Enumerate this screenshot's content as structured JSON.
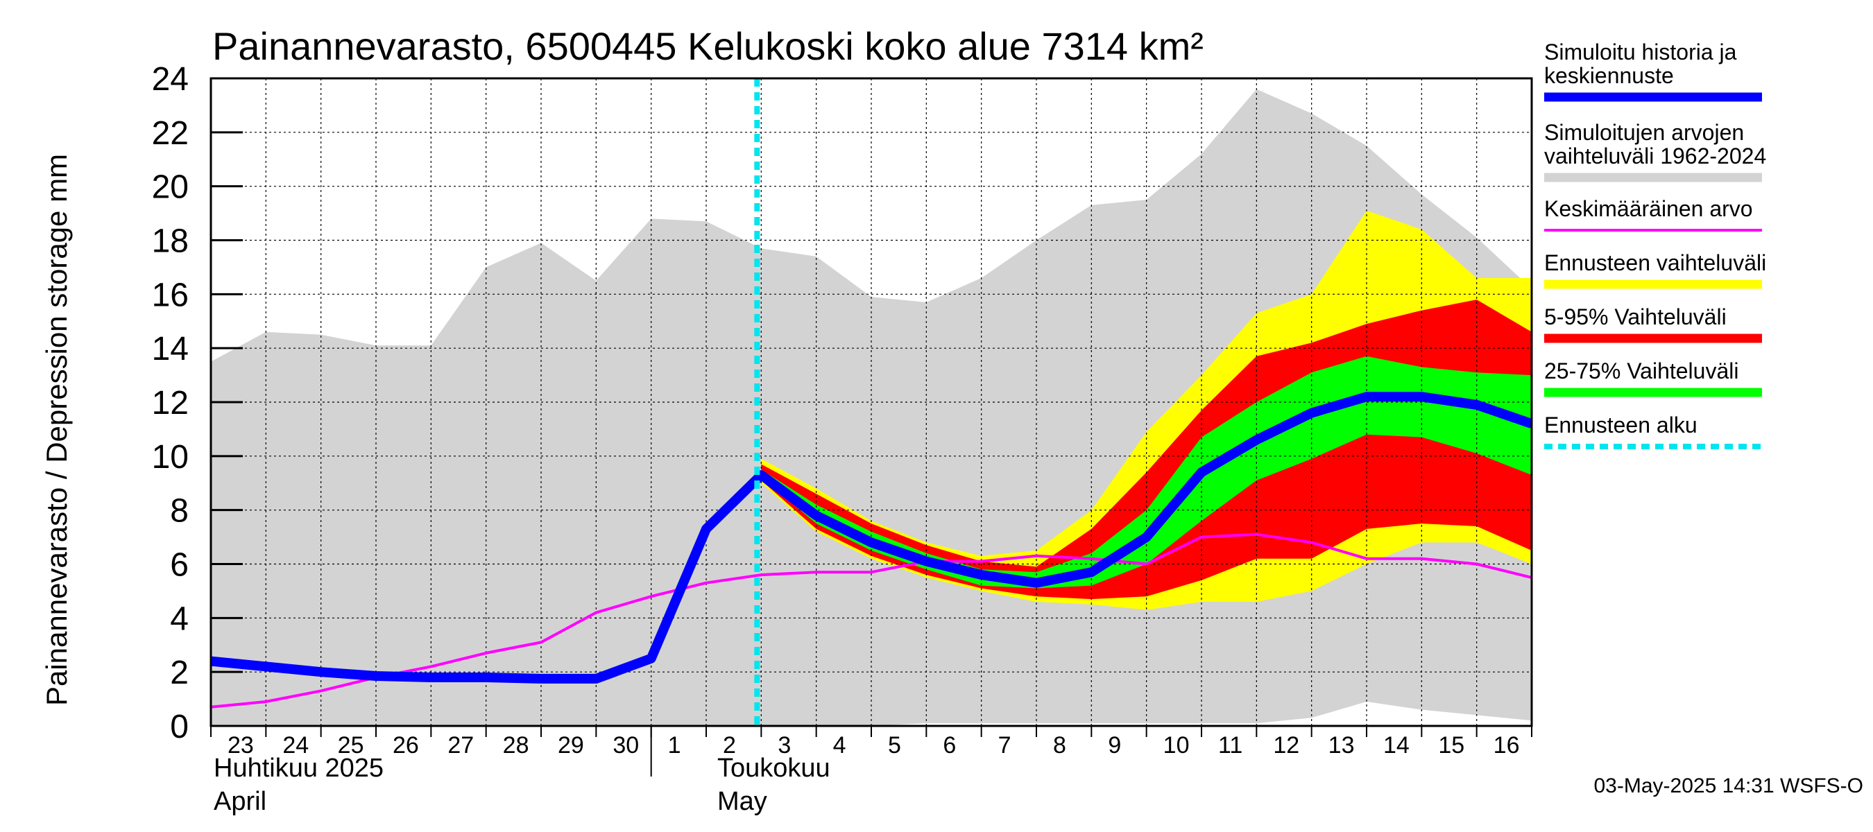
{
  "chart_data": {
    "type": "area",
    "title": "Painannevarasto, 6500445 Kelukoski koko alue 7314 km²",
    "ylabel": "Painannevarasto / Depression storage    mm",
    "ylim": [
      0,
      24
    ],
    "yticks": [
      0,
      2,
      4,
      6,
      8,
      10,
      12,
      14,
      16,
      18,
      20,
      22,
      24
    ],
    "grid": true,
    "legend_position": "right",
    "x_start_date": "2025-04-23",
    "x_end_date": "2025-05-17",
    "forecast_start_date": "2025-05-03",
    "x_tick_labels": [
      "23",
      "24",
      "25",
      "26",
      "27",
      "28",
      "29",
      "30",
      "1",
      "2",
      "3",
      "4",
      "5",
      "6",
      "7",
      "8",
      "9",
      "10",
      "11",
      "12",
      "13",
      "14",
      "15",
      "16"
    ],
    "month_labels": [
      {
        "fi": "Huhtikuu  2025",
        "en": "April",
        "date": "2025-04-23"
      },
      {
        "fi": "Toukokuu",
        "en": "May",
        "date": "2025-05-02"
      }
    ],
    "colors": {
      "history": "#0000ff",
      "hist_range": "#d3d3d3",
      "mean": "#ff00ff",
      "forecast_range": "#ffff00",
      "p5_95": "#ff0000",
      "p25_75": "#00ff00",
      "forecast_start": "#00e5ee"
    },
    "series": [
      {
        "name": "Simuloitujen arvojen vaihteluväli 1962-2024",
        "kind": "band",
        "x": [
          "2025-04-23",
          "2025-04-24",
          "2025-04-25",
          "2025-04-26",
          "2025-04-27",
          "2025-04-28",
          "2025-04-29",
          "2025-04-30",
          "2025-05-01",
          "2025-05-02",
          "2025-05-03",
          "2025-05-04",
          "2025-05-05",
          "2025-05-06",
          "2025-05-07",
          "2025-05-08",
          "2025-05-09",
          "2025-05-10",
          "2025-05-11",
          "2025-05-12",
          "2025-05-13",
          "2025-05-14",
          "2025-05-15",
          "2025-05-16",
          "2025-05-17"
        ],
        "low": [
          0,
          0,
          0,
          0,
          0,
          0,
          0,
          0,
          0,
          0,
          0,
          0,
          0,
          0.1,
          0.1,
          0.1,
          0.1,
          0.1,
          0.1,
          0.1,
          0.3,
          0.9,
          0.6,
          0.4,
          0.2
        ],
        "high": [
          13.5,
          14.6,
          14.5,
          14.1,
          14.1,
          17.0,
          17.9,
          16.5,
          18.8,
          18.7,
          17.7,
          17.4,
          15.9,
          15.7,
          16.6,
          18.0,
          19.3,
          19.5,
          21.2,
          23.6,
          22.7,
          21.5,
          19.7,
          18.1,
          16.2
        ]
      },
      {
        "name": "Ennusteen vaihteluväli",
        "kind": "band",
        "x": [
          "2025-05-03",
          "2025-05-04",
          "2025-05-05",
          "2025-05-06",
          "2025-05-07",
          "2025-05-08",
          "2025-05-09",
          "2025-05-10",
          "2025-05-11",
          "2025-05-12",
          "2025-05-13",
          "2025-05-14",
          "2025-05-15",
          "2025-05-16",
          "2025-05-17"
        ],
        "low": [
          9.0,
          7.2,
          6.2,
          5.5,
          5.0,
          4.6,
          4.5,
          4.3,
          4.6,
          4.6,
          5.0,
          6.0,
          6.8,
          6.8,
          6.0
        ],
        "high": [
          9.9,
          8.8,
          7.6,
          6.8,
          6.3,
          6.5,
          8.0,
          10.9,
          13.0,
          15.3,
          16.0,
          19.1,
          18.4,
          16.6,
          16.6
        ]
      },
      {
        "name": "5-95% Vaihteluväli",
        "kind": "band",
        "x": [
          "2025-05-03",
          "2025-05-04",
          "2025-05-05",
          "2025-05-06",
          "2025-05-07",
          "2025-05-08",
          "2025-05-09",
          "2025-05-10",
          "2025-05-11",
          "2025-05-12",
          "2025-05-13",
          "2025-05-14",
          "2025-05-15",
          "2025-05-16",
          "2025-05-17"
        ],
        "low": [
          9.1,
          7.3,
          6.3,
          5.6,
          5.1,
          4.8,
          4.7,
          4.8,
          5.4,
          6.2,
          6.2,
          7.3,
          7.5,
          7.4,
          6.5
        ],
        "high": [
          9.7,
          8.6,
          7.5,
          6.7,
          6.1,
          5.9,
          7.3,
          9.4,
          11.7,
          13.7,
          14.2,
          14.9,
          15.4,
          15.8,
          14.6
        ]
      },
      {
        "name": "25-75% Vaihteluväli",
        "kind": "band",
        "x": [
          "2025-05-03",
          "2025-05-04",
          "2025-05-05",
          "2025-05-06",
          "2025-05-07",
          "2025-05-08",
          "2025-05-09",
          "2025-05-10",
          "2025-05-11",
          "2025-05-12",
          "2025-05-13",
          "2025-05-14",
          "2025-05-15",
          "2025-05-16",
          "2025-05-17"
        ],
        "low": [
          9.2,
          7.5,
          6.5,
          5.8,
          5.2,
          5.1,
          5.2,
          6.0,
          7.6,
          9.1,
          9.9,
          10.8,
          10.7,
          10.1,
          9.3
        ],
        "high": [
          9.5,
          8.2,
          7.2,
          6.4,
          5.8,
          5.7,
          6.4,
          8.0,
          10.7,
          12.0,
          13.1,
          13.7,
          13.3,
          13.1,
          13.0
        ]
      },
      {
        "name": "Keskimääräinen arvo",
        "kind": "line",
        "x": [
          "2025-04-23",
          "2025-04-24",
          "2025-04-25",
          "2025-04-26",
          "2025-04-27",
          "2025-04-28",
          "2025-04-29",
          "2025-04-30",
          "2025-05-01",
          "2025-05-02",
          "2025-05-03",
          "2025-05-04",
          "2025-05-05",
          "2025-05-06",
          "2025-05-07",
          "2025-05-08",
          "2025-05-09",
          "2025-05-10",
          "2025-05-11",
          "2025-05-12",
          "2025-05-13",
          "2025-05-14",
          "2025-05-15",
          "2025-05-16",
          "2025-05-17"
        ],
        "y": [
          0.7,
          0.9,
          1.3,
          1.8,
          2.2,
          2.7,
          3.1,
          4.2,
          4.8,
          5.3,
          5.6,
          5.7,
          5.7,
          6.1,
          6.1,
          6.3,
          6.2,
          6.0,
          7.0,
          7.1,
          6.8,
          6.2,
          6.2,
          6.0,
          5.5
        ]
      },
      {
        "name": "Simuloitu historia ja keskiennuste",
        "kind": "line",
        "x": [
          "2025-04-23",
          "2025-04-24",
          "2025-04-25",
          "2025-04-26",
          "2025-04-27",
          "2025-04-28",
          "2025-04-29",
          "2025-04-30",
          "2025-05-01",
          "2025-05-02",
          "2025-05-03",
          "2025-05-04",
          "2025-05-05",
          "2025-05-06",
          "2025-05-07",
          "2025-05-08",
          "2025-05-09",
          "2025-05-10",
          "2025-05-11",
          "2025-05-12",
          "2025-05-13",
          "2025-05-14",
          "2025-05-15",
          "2025-05-16",
          "2025-05-17"
        ],
        "y": [
          2.4,
          2.2,
          2.0,
          1.85,
          1.8,
          1.8,
          1.75,
          1.75,
          2.5,
          7.3,
          9.3,
          7.8,
          6.8,
          6.1,
          5.6,
          5.3,
          5.7,
          7.0,
          9.4,
          10.6,
          11.6,
          12.2,
          12.2,
          11.9,
          11.2
        ]
      }
    ],
    "legend": [
      {
        "label": "Simuloitu historia ja keskiennuste",
        "color": "#0000ff",
        "style": "thick"
      },
      {
        "label": "Simuloitujen arvojen vaihteluväli 1962-2024",
        "color": "#d3d3d3",
        "style": "thick"
      },
      {
        "label": "Keskimääräinen arvo",
        "color": "#ff00ff",
        "style": "thin"
      },
      {
        "label": "Ennusteen vaihteluväli",
        "color": "#ffff00",
        "style": "thick"
      },
      {
        "label": "5-95% Vaihteluväli",
        "color": "#ff0000",
        "style": "thick"
      },
      {
        "label": "25-75% Vaihteluväli",
        "color": "#00ff00",
        "style": "thick"
      },
      {
        "label": "Ennusteen alku",
        "color": "#00e5ee",
        "style": "dotted"
      }
    ],
    "footer": "03-May-2025 14:31 WSFS-O"
  }
}
